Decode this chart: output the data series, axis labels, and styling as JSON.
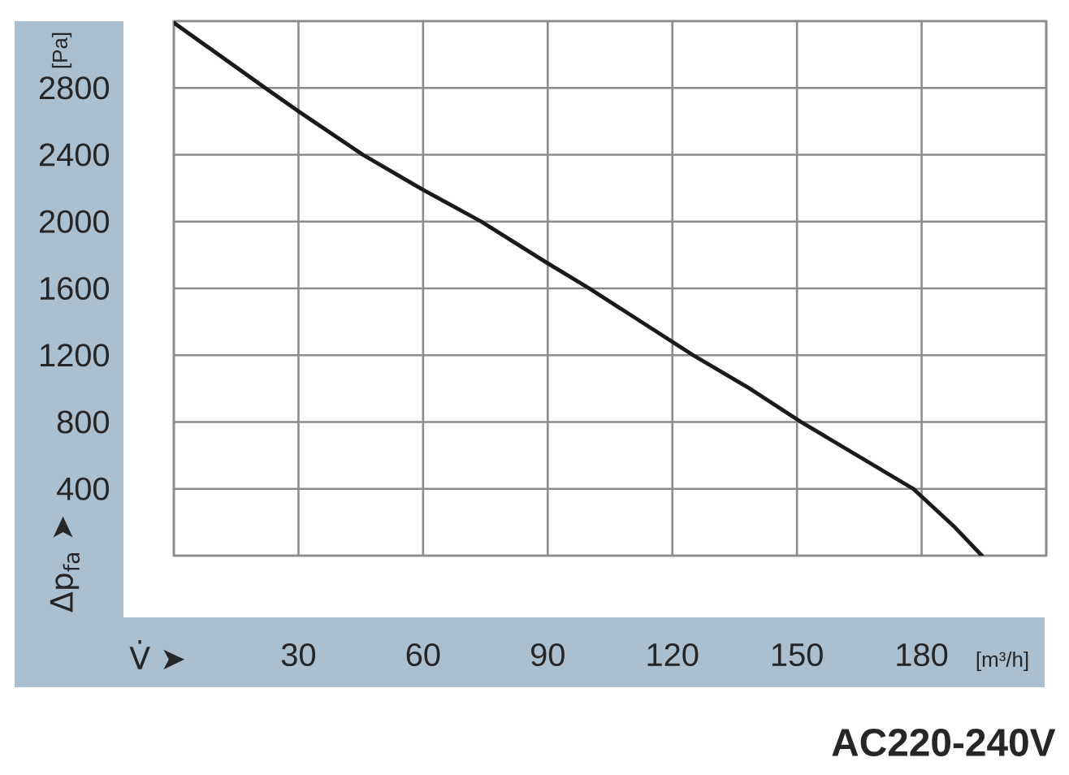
{
  "chart_data": {
    "type": "line",
    "xlabel": "V̇ ➤",
    "ylabel": "Δp$_{fa}$ ➤",
    "annotations": [
      "[Pa]",
      "[m³/h]",
      "AC220-240V"
    ],
    "x": [
      0,
      22,
      30,
      45.5,
      60,
      74,
      90,
      100,
      120,
      125,
      138,
      151,
      178,
      188,
      194.5
    ],
    "series": [
      {
        "color": "#1a1a1a",
        "values": [
          3190,
          2800,
          2660,
          2400,
          2190,
          2000,
          1750,
          1600,
          1280,
          1200,
          1010,
          800,
          400,
          170,
          0
        ]
      }
    ],
    "xlim": [
      0,
      210
    ],
    "ylim": [
      0,
      3200
    ],
    "xticks": [
      {
        "value": 0,
        "label": null
      },
      30,
      60,
      90,
      120,
      150,
      180,
      {
        "value": 210,
        "label": null
      }
    ],
    "yticks": [
      {
        "value": 0,
        "label": null
      },
      400,
      800,
      1200,
      1600,
      2000,
      2400,
      2800,
      {
        "value": 3200,
        "label": null
      }
    ],
    "grid": true,
    "marker": "none",
    "line_style": "solid"
  }
}
